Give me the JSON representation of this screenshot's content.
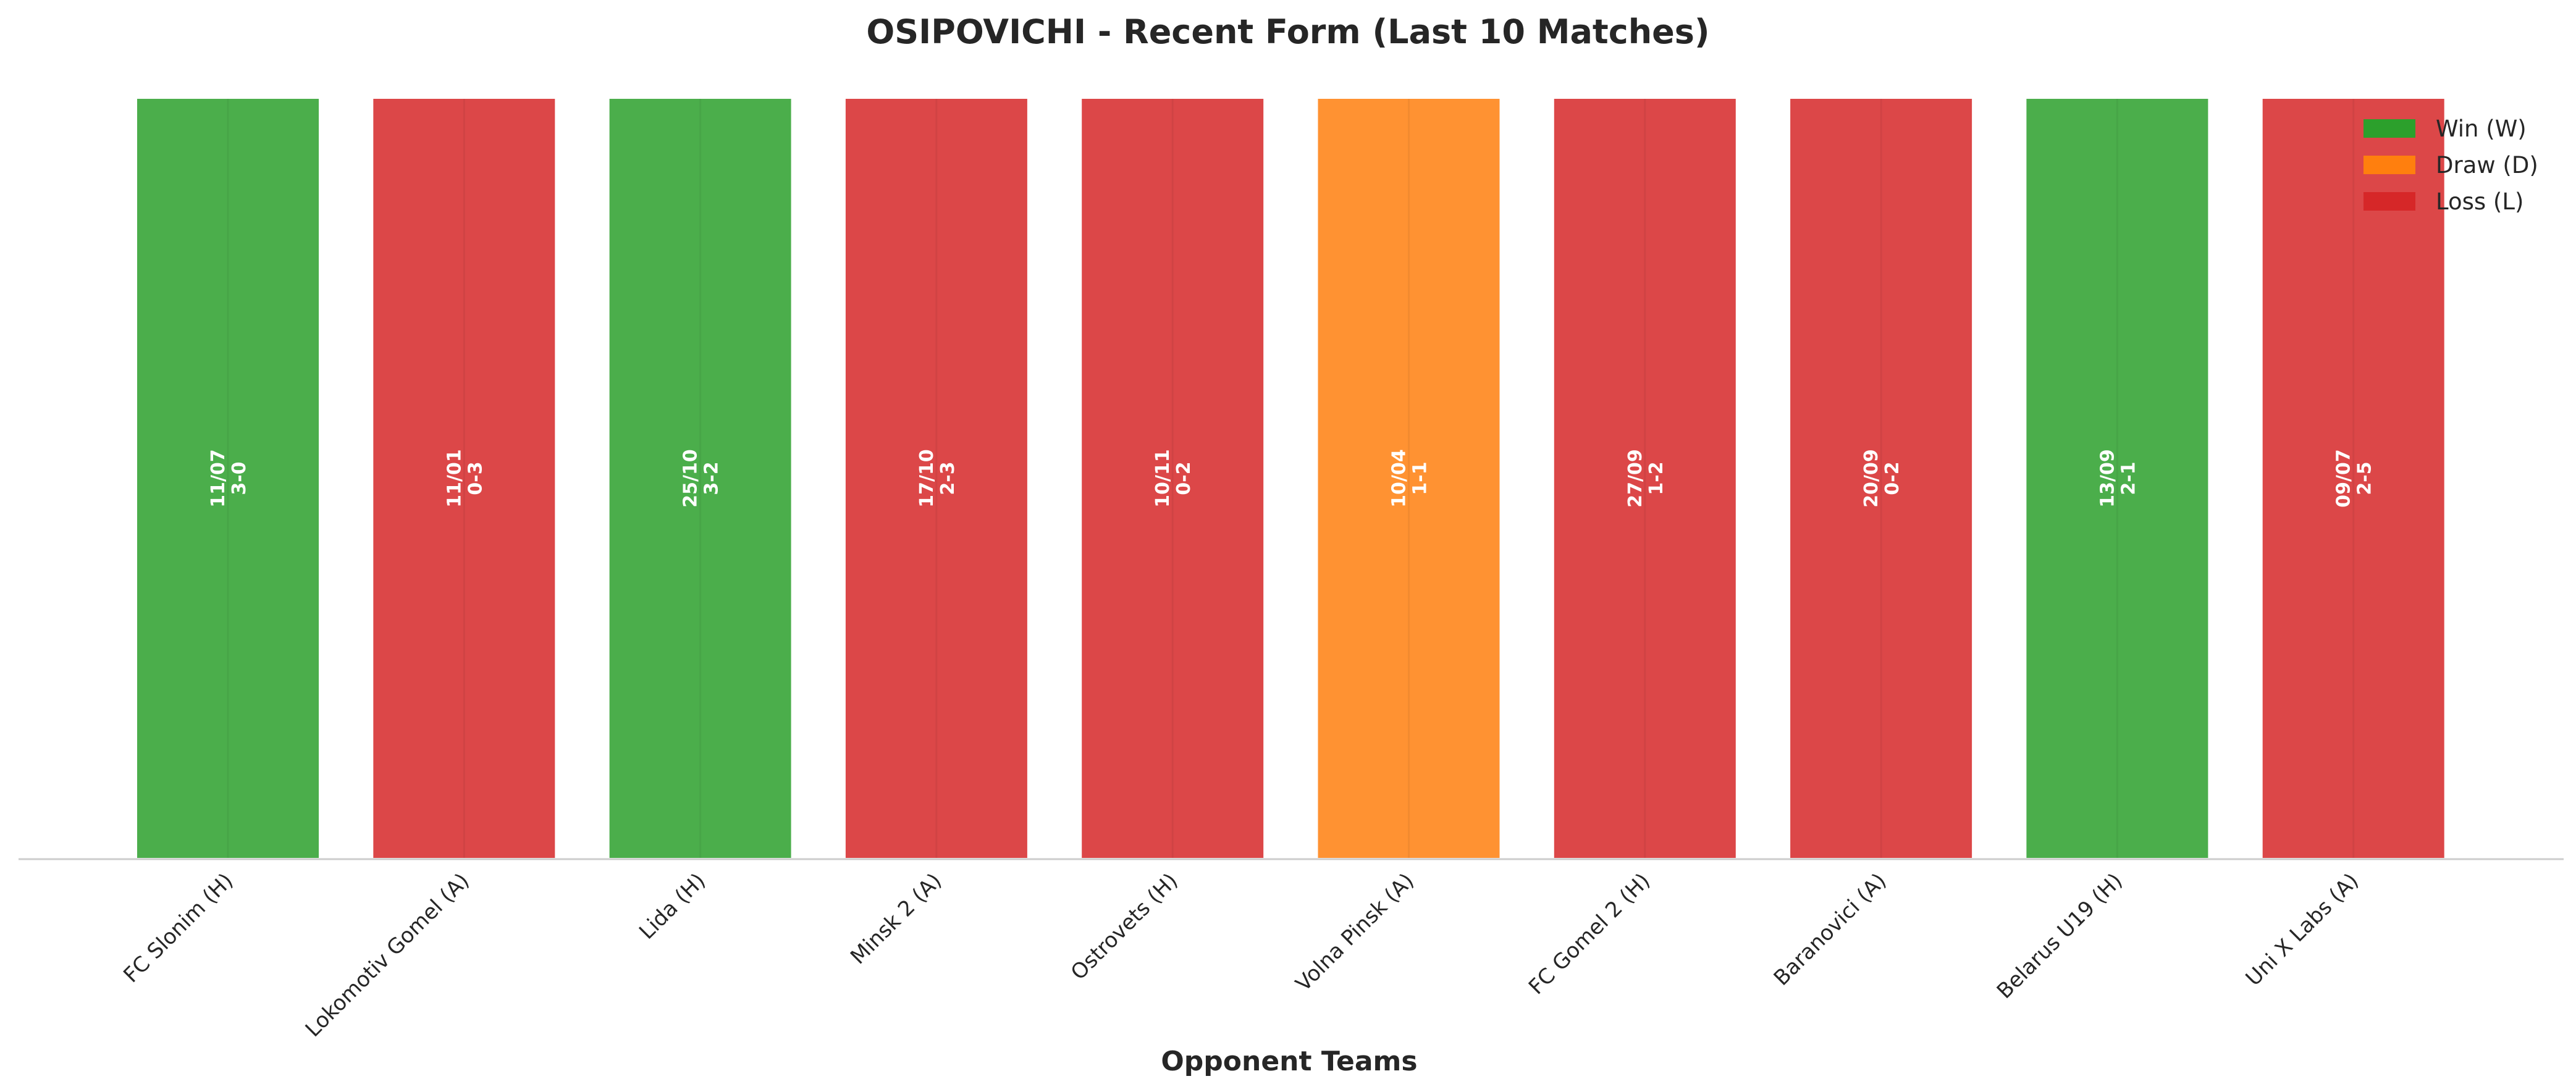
{
  "chart_data": {
    "type": "bar",
    "title": "OSIPOVICHI - Recent Form (Last 10 Matches)",
    "xlabel": "Opponent Teams",
    "ylabel": "",
    "categories": [
      "FC Slonim (H)",
      "Lokomotiv Gomel (A)",
      "Lida (H)",
      "Minsk 2 (A)",
      "Ostrovets (H)",
      "Volna Pinsk (A)",
      "FC Gomel 2 (H)",
      "Baranovici (A)",
      "Belarus U19 (H)",
      "Uni X Labs (A)"
    ],
    "values": [
      1,
      1,
      1,
      1,
      1,
      1,
      1,
      1,
      1,
      1
    ],
    "results": [
      "W",
      "L",
      "W",
      "L",
      "L",
      "D",
      "L",
      "L",
      "W",
      "L"
    ],
    "dates": [
      "11/07",
      "11/01",
      "25/10",
      "17/10",
      "10/11",
      "10/04",
      "27/09",
      "20/09",
      "13/09",
      "09/07"
    ],
    "scores": [
      "3-0",
      "0-3",
      "3-2",
      "2-3",
      "0-2",
      "1-1",
      "1-2",
      "0-2",
      "2-1",
      "2-5"
    ],
    "ylim": [
      0,
      1
    ],
    "grid": false,
    "legend": {
      "placement": "top-right",
      "entries": [
        {
          "key": "W",
          "label": "Win (W)",
          "color": "#2ca02c"
        },
        {
          "key": "D",
          "label": "Draw (D)",
          "color": "#ff7f0e"
        },
        {
          "key": "L",
          "label": "Loss (L)",
          "color": "#d62728"
        }
      ]
    },
    "colors": {
      "W": "#2ca02c",
      "D": "#ff7f0e",
      "L": "#d62728"
    }
  }
}
